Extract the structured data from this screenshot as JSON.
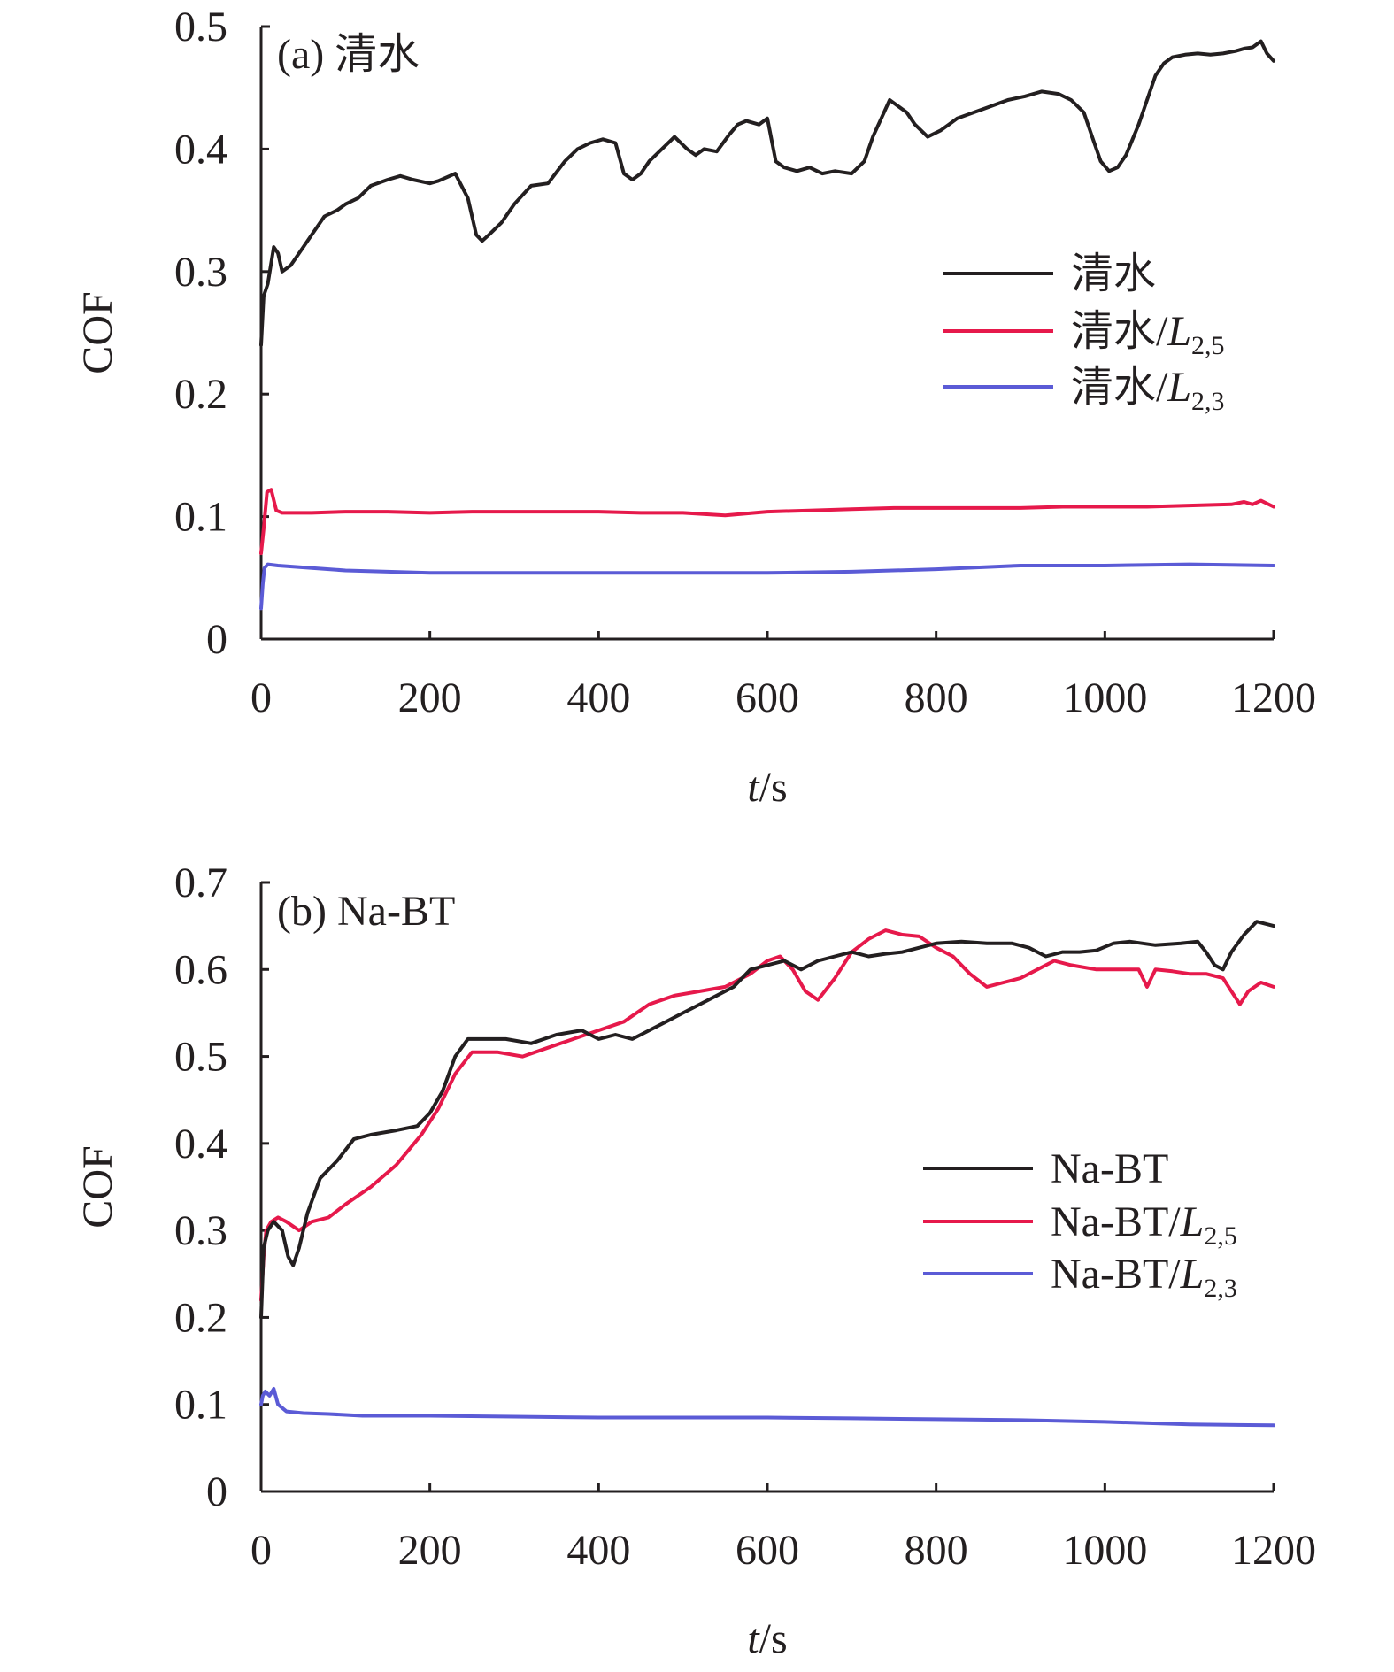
{
  "chart_data": [
    {
      "type": "line",
      "panel_label": "(a) 清水",
      "xlabel_italic": "t",
      "xlabel_rest": "/s",
      "ylabel": "COF",
      "xlim": [
        0,
        1200
      ],
      "ylim": [
        0,
        0.5
      ],
      "xticks": [
        0,
        200,
        400,
        600,
        800,
        1000,
        1200
      ],
      "yticks": [
        0,
        0.1,
        0.2,
        0.3,
        0.4,
        0.5
      ],
      "xtick_labels": [
        "0",
        "200",
        "400",
        "600",
        "800",
        "1000",
        "1200"
      ],
      "ytick_labels": [
        "0",
        "0.1",
        "0.2",
        "0.3",
        "0.4",
        "0.5"
      ],
      "legend_position": "right",
      "series": [
        {
          "name": "清水",
          "name_base": "清水",
          "name_sub": "",
          "color": "#231f20",
          "x": [
            0,
            3,
            8,
            15,
            20,
            25,
            35,
            50,
            60,
            75,
            90,
            100,
            115,
            130,
            150,
            165,
            180,
            200,
            210,
            230,
            245,
            255,
            262,
            270,
            285,
            300,
            320,
            340,
            360,
            375,
            390,
            405,
            420,
            430,
            440,
            450,
            460,
            475,
            490,
            505,
            515,
            525,
            540,
            555,
            565,
            575,
            590,
            600,
            610,
            620,
            635,
            650,
            665,
            680,
            700,
            715,
            725,
            735,
            745,
            755,
            765,
            775,
            790,
            805,
            815,
            825,
            845,
            865,
            885,
            905,
            925,
            945,
            960,
            975,
            985,
            995,
            1005,
            1015,
            1025,
            1040,
            1050,
            1060,
            1070,
            1080,
            1095,
            1110,
            1125,
            1140,
            1155,
            1165,
            1175,
            1185,
            1192,
            1200
          ],
          "y": [
            0.24,
            0.28,
            0.29,
            0.32,
            0.315,
            0.3,
            0.305,
            0.32,
            0.33,
            0.345,
            0.35,
            0.355,
            0.36,
            0.37,
            0.375,
            0.378,
            0.375,
            0.372,
            0.374,
            0.38,
            0.36,
            0.33,
            0.325,
            0.33,
            0.34,
            0.355,
            0.37,
            0.372,
            0.39,
            0.4,
            0.405,
            0.408,
            0.405,
            0.38,
            0.375,
            0.38,
            0.39,
            0.4,
            0.41,
            0.4,
            0.395,
            0.4,
            0.398,
            0.412,
            0.42,
            0.423,
            0.42,
            0.425,
            0.39,
            0.385,
            0.382,
            0.385,
            0.38,
            0.382,
            0.38,
            0.39,
            0.41,
            0.425,
            0.44,
            0.435,
            0.43,
            0.42,
            0.41,
            0.415,
            0.42,
            0.425,
            0.43,
            0.435,
            0.44,
            0.443,
            0.447,
            0.445,
            0.44,
            0.43,
            0.41,
            0.39,
            0.382,
            0.385,
            0.395,
            0.42,
            0.44,
            0.46,
            0.47,
            0.475,
            0.477,
            0.478,
            0.477,
            0.478,
            0.48,
            0.482,
            0.483,
            0.488,
            0.478,
            0.472
          ]
        },
        {
          "name": "清水/L2,5",
          "name_base": "清水/",
          "name_sub": "2,5",
          "color": "#e6194b",
          "x": [
            0,
            3,
            7,
            12,
            18,
            25,
            60,
            100,
            150,
            200,
            250,
            300,
            350,
            400,
            450,
            500,
            550,
            600,
            650,
            700,
            750,
            800,
            850,
            900,
            950,
            1000,
            1050,
            1100,
            1150,
            1165,
            1175,
            1185,
            1200
          ],
          "y": [
            0.07,
            0.09,
            0.12,
            0.122,
            0.105,
            0.103,
            0.103,
            0.104,
            0.104,
            0.103,
            0.104,
            0.104,
            0.104,
            0.104,
            0.103,
            0.103,
            0.101,
            0.104,
            0.105,
            0.106,
            0.107,
            0.107,
            0.107,
            0.107,
            0.108,
            0.108,
            0.108,
            0.109,
            0.11,
            0.112,
            0.11,
            0.113,
            0.108
          ]
        },
        {
          "name": "清水/L2,3",
          "name_base": "清水/",
          "name_sub": "2,3",
          "color": "#5b5bd6",
          "x": [
            0,
            2,
            4,
            8,
            20,
            60,
            100,
            150,
            200,
            300,
            400,
            500,
            600,
            700,
            800,
            900,
            1000,
            1100,
            1200
          ],
          "y": [
            0.025,
            0.045,
            0.058,
            0.061,
            0.06,
            0.058,
            0.056,
            0.055,
            0.054,
            0.054,
            0.054,
            0.054,
            0.054,
            0.055,
            0.057,
            0.06,
            0.06,
            0.061,
            0.06
          ]
        }
      ]
    },
    {
      "type": "line",
      "panel_label": "(b) Na-BT",
      "xlabel_italic": "t",
      "xlabel_rest": "/s",
      "ylabel": "COF",
      "xlim": [
        0,
        1200
      ],
      "ylim": [
        0,
        0.7
      ],
      "xticks": [
        0,
        200,
        400,
        600,
        800,
        1000,
        1200
      ],
      "yticks": [
        0,
        0.1,
        0.2,
        0.3,
        0.4,
        0.5,
        0.6,
        0.7
      ],
      "xtick_labels": [
        "0",
        "200",
        "400",
        "600",
        "800",
        "1000",
        "1200"
      ],
      "ytick_labels": [
        "0",
        "0.1",
        "0.2",
        "0.3",
        "0.4",
        "0.5",
        "0.6",
        "0.7"
      ],
      "legend_position": "right",
      "series": [
        {
          "name": "Na-BT",
          "name_base": "Na-BT",
          "name_sub": "",
          "color": "#231f20",
          "x": [
            0,
            3,
            8,
            15,
            25,
            32,
            38,
            45,
            55,
            70,
            90,
            110,
            130,
            160,
            185,
            200,
            215,
            230,
            245,
            260,
            290,
            320,
            350,
            380,
            400,
            420,
            440,
            460,
            480,
            500,
            520,
            540,
            560,
            580,
            600,
            620,
            640,
            660,
            680,
            700,
            720,
            740,
            760,
            780,
            800,
            830,
            860,
            890,
            910,
            930,
            950,
            970,
            990,
            1010,
            1030,
            1060,
            1090,
            1110,
            1120,
            1130,
            1140,
            1150,
            1165,
            1180,
            1200
          ],
          "y": [
            0.2,
            0.28,
            0.3,
            0.31,
            0.3,
            0.27,
            0.26,
            0.28,
            0.32,
            0.36,
            0.38,
            0.405,
            0.41,
            0.415,
            0.42,
            0.435,
            0.46,
            0.5,
            0.52,
            0.52,
            0.52,
            0.515,
            0.525,
            0.53,
            0.52,
            0.525,
            0.52,
            0.53,
            0.54,
            0.55,
            0.56,
            0.57,
            0.58,
            0.6,
            0.605,
            0.61,
            0.6,
            0.61,
            0.615,
            0.62,
            0.615,
            0.618,
            0.62,
            0.625,
            0.63,
            0.632,
            0.63,
            0.63,
            0.625,
            0.615,
            0.62,
            0.62,
            0.622,
            0.63,
            0.632,
            0.628,
            0.63,
            0.632,
            0.62,
            0.605,
            0.6,
            0.62,
            0.64,
            0.655,
            0.65
          ]
        },
        {
          "name": "Na-BT/L2,5",
          "name_base": "Na-BT/",
          "name_sub": "2,5",
          "color": "#e6194b",
          "x": [
            0,
            3,
            6,
            12,
            20,
            30,
            45,
            60,
            80,
            100,
            130,
            160,
            190,
            210,
            230,
            250,
            280,
            310,
            340,
            370,
            400,
            430,
            460,
            490,
            520,
            550,
            580,
            600,
            615,
            630,
            645,
            660,
            680,
            700,
            720,
            740,
            760,
            780,
            800,
            820,
            840,
            860,
            880,
            900,
            920,
            940,
            960,
            990,
            1020,
            1040,
            1050,
            1060,
            1080,
            1100,
            1120,
            1140,
            1150,
            1160,
            1170,
            1185,
            1200
          ],
          "y": [
            0.22,
            0.27,
            0.3,
            0.31,
            0.315,
            0.31,
            0.3,
            0.31,
            0.315,
            0.33,
            0.35,
            0.375,
            0.41,
            0.44,
            0.48,
            0.505,
            0.505,
            0.5,
            0.51,
            0.52,
            0.53,
            0.54,
            0.56,
            0.57,
            0.575,
            0.58,
            0.595,
            0.61,
            0.615,
            0.6,
            0.575,
            0.565,
            0.59,
            0.62,
            0.635,
            0.645,
            0.64,
            0.638,
            0.625,
            0.615,
            0.595,
            0.58,
            0.585,
            0.59,
            0.6,
            0.61,
            0.605,
            0.6,
            0.6,
            0.6,
            0.58,
            0.6,
            0.598,
            0.595,
            0.595,
            0.59,
            0.575,
            0.56,
            0.575,
            0.585,
            0.58
          ]
        },
        {
          "name": "Na-BT/L2,3",
          "name_base": "Na-BT/",
          "name_sub": "2,3",
          "color": "#5b5bd6",
          "x": [
            0,
            2,
            5,
            10,
            15,
            20,
            30,
            50,
            80,
            120,
            200,
            300,
            400,
            500,
            600,
            700,
            800,
            900,
            1000,
            1100,
            1200
          ],
          "y": [
            0.1,
            0.11,
            0.115,
            0.11,
            0.118,
            0.1,
            0.092,
            0.09,
            0.089,
            0.087,
            0.087,
            0.086,
            0.085,
            0.085,
            0.085,
            0.084,
            0.083,
            0.082,
            0.08,
            0.077,
            0.076
          ]
        }
      ]
    }
  ]
}
